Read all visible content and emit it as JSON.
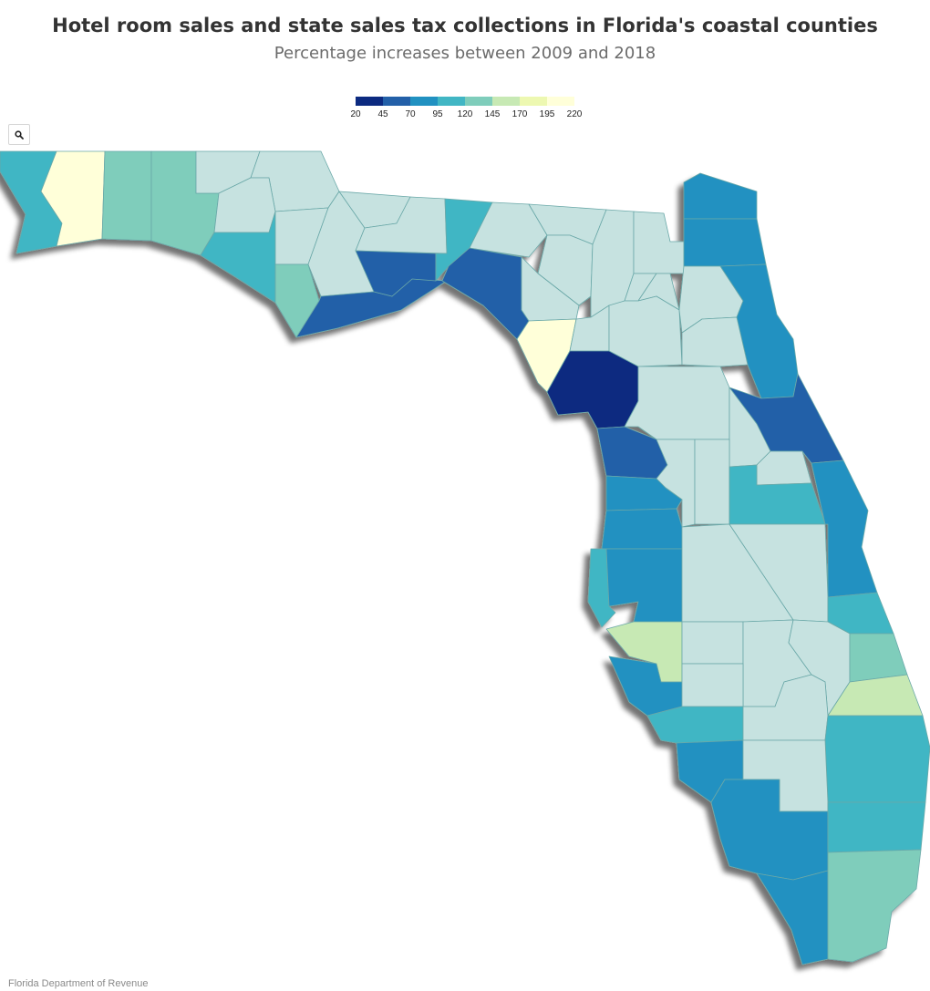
{
  "title": "Hotel room sales and state sales tax collections in Florida's coastal counties",
  "subtitle": "Percentage increases between 2009 and 2018",
  "legend": {
    "ticks": [
      "20",
      "45",
      "70",
      "95",
      "120",
      "145",
      "170",
      "195",
      "220"
    ],
    "colors": [
      "#0c2a80",
      "#2360a8",
      "#2191c1",
      "#41b6c4",
      "#7fcdbb",
      "#c7e9b4",
      "#edf8b1",
      "#ffffd9"
    ]
  },
  "zoom_icon": "search-icon",
  "source": "Florida Department of Revenue",
  "colors": {
    "non_coastal": "#c6e2e0",
    "border": "#6aa8a8"
  }
}
